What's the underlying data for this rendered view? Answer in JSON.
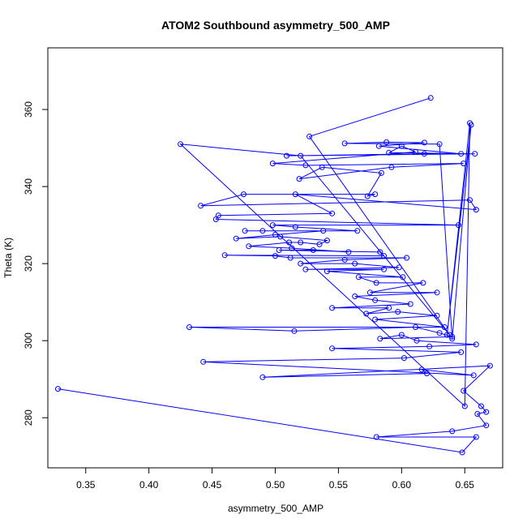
{
  "chart_data": {
    "type": "line",
    "title": "ATOM2 Southbound asymmetry_500_AMP",
    "xlabel": "asymmetry_500_AMP",
    "ylabel": "Theta (K)",
    "xlim": [
      0.32,
      0.68
    ],
    "ylim": [
      267,
      376
    ],
    "xticks": [
      0.35,
      0.4,
      0.45,
      0.5,
      0.55,
      0.6,
      0.65
    ],
    "xtick_labels": [
      "0.35",
      "0.40",
      "0.45",
      "0.50",
      "0.55",
      "0.60",
      "0.65"
    ],
    "yticks": [
      280,
      300,
      320,
      340,
      360
    ],
    "ytick_labels": [
      "280",
      "300",
      "320",
      "340",
      "360"
    ],
    "grid": false,
    "series_color": "#0000ff",
    "marker": "open-circle",
    "points": [
      [
        0.623,
        363.0
      ],
      [
        0.527,
        353.0
      ],
      [
        0.638,
        301.5
      ],
      [
        0.52,
        348.0
      ],
      [
        0.425,
        351.0
      ],
      [
        0.65,
        283.0
      ],
      [
        0.654,
        356.5
      ],
      [
        0.636,
        301.5
      ],
      [
        0.655,
        356.0
      ],
      [
        0.64,
        300.5
      ],
      [
        0.63,
        351.0
      ],
      [
        0.555,
        351.2
      ],
      [
        0.588,
        351.5
      ],
      [
        0.618,
        351.4
      ],
      [
        0.582,
        350.5
      ],
      [
        0.647,
        348.5
      ],
      [
        0.618,
        348.5
      ],
      [
        0.509,
        348.0
      ],
      [
        0.658,
        348.5
      ],
      [
        0.59,
        348.8
      ],
      [
        0.6,
        350.5
      ],
      [
        0.611,
        349.0
      ],
      [
        0.498,
        346.0
      ],
      [
        0.524,
        345.5
      ],
      [
        0.649,
        346.0
      ],
      [
        0.592,
        345.0
      ],
      [
        0.519,
        342.0
      ],
      [
        0.537,
        345.0
      ],
      [
        0.584,
        343.5
      ],
      [
        0.573,
        337.5
      ],
      [
        0.579,
        338.0
      ],
      [
        0.475,
        338.0
      ],
      [
        0.441,
        335.0
      ],
      [
        0.654,
        336.5
      ],
      [
        0.659,
        334.0
      ],
      [
        0.516,
        338.0
      ],
      [
        0.545,
        333.0
      ],
      [
        0.455,
        332.5
      ],
      [
        0.453,
        331.5
      ],
      [
        0.645,
        330.0
      ],
      [
        0.498,
        330.0
      ],
      [
        0.516,
        329.5
      ],
      [
        0.565,
        328.5
      ],
      [
        0.476,
        328.5
      ],
      [
        0.49,
        328.5
      ],
      [
        0.538,
        328.5
      ],
      [
        0.5,
        327.5
      ],
      [
        0.469,
        326.5
      ],
      [
        0.504,
        327.0
      ],
      [
        0.541,
        326.0
      ],
      [
        0.535,
        325.0
      ],
      [
        0.52,
        325.5
      ],
      [
        0.511,
        325.5
      ],
      [
        0.479,
        324.5
      ],
      [
        0.513,
        324.0
      ],
      [
        0.558,
        323.0
      ],
      [
        0.53,
        323.5
      ],
      [
        0.503,
        323.5
      ],
      [
        0.583,
        323.0
      ],
      [
        0.586,
        322.0
      ],
      [
        0.46,
        322.2
      ],
      [
        0.5,
        322.0
      ],
      [
        0.512,
        321.5
      ],
      [
        0.604,
        321.5
      ],
      [
        0.555,
        321.0
      ],
      [
        0.52,
        320.0
      ],
      [
        0.563,
        320.0
      ],
      [
        0.598,
        319.0
      ],
      [
        0.524,
        318.5
      ],
      [
        0.586,
        318.5
      ],
      [
        0.541,
        318.0
      ],
      [
        0.601,
        316.5
      ],
      [
        0.566,
        316.5
      ],
      [
        0.58,
        315.0
      ],
      [
        0.617,
        315.0
      ],
      [
        0.575,
        312.5
      ],
      [
        0.628,
        312.5
      ],
      [
        0.563,
        311.5
      ],
      [
        0.579,
        310.5
      ],
      [
        0.607,
        309.5
      ],
      [
        0.545,
        308.5
      ],
      [
        0.59,
        308.5
      ],
      [
        0.572,
        307.0
      ],
      [
        0.597,
        307.5
      ],
      [
        0.628,
        306.5
      ],
      [
        0.579,
        305.5
      ],
      [
        0.634,
        303.5
      ],
      [
        0.432,
        303.5
      ],
      [
        0.515,
        302.5
      ],
      [
        0.611,
        303.5
      ],
      [
        0.63,
        302.0
      ],
      [
        0.64,
        301.0
      ],
      [
        0.583,
        300.5
      ],
      [
        0.6,
        301.5
      ],
      [
        0.612,
        300.0
      ],
      [
        0.659,
        299.0
      ],
      [
        0.622,
        298.5
      ],
      [
        0.545,
        298.0
      ],
      [
        0.647,
        297.0
      ],
      [
        0.602,
        295.5
      ],
      [
        0.443,
        294.5
      ],
      [
        0.657,
        291.0
      ],
      [
        0.616,
        292.5
      ],
      [
        0.62,
        291.5
      ],
      [
        0.49,
        290.5
      ],
      [
        0.67,
        293.5
      ],
      [
        0.649,
        287.0
      ],
      [
        0.663,
        283.0
      ],
      [
        0.667,
        281.5
      ],
      [
        0.66,
        281.0
      ],
      [
        0.667,
        278.0
      ],
      [
        0.64,
        276.5
      ],
      [
        0.58,
        275.0
      ],
      [
        0.659,
        275.0
      ],
      [
        0.648,
        271.0
      ],
      [
        0.328,
        287.5
      ]
    ]
  }
}
